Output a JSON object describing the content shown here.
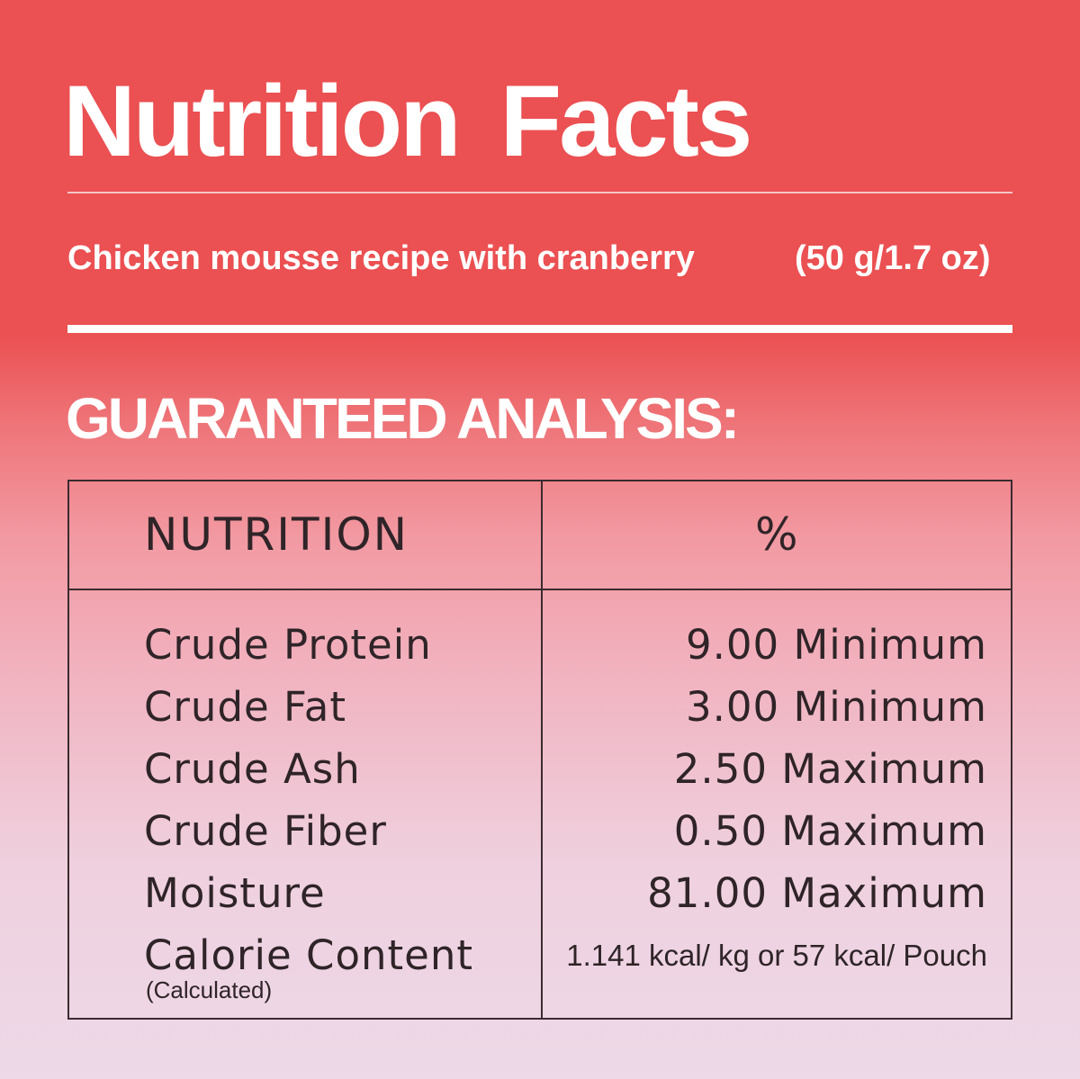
{
  "title": "Nutrition Facts",
  "subtitle": {
    "product": "Chicken mousse recipe with cranberry",
    "serving": "(50 g/1.7 oz)"
  },
  "section_heading": "GUARANTEED ANALYSIS:",
  "table": {
    "headers": [
      "NUTRITION",
      "%"
    ],
    "rows": [
      {
        "name": "Crude Protein",
        "value": "9.00 Minimum"
      },
      {
        "name": "Crude Fat",
        "value": "3.00 Minimum"
      },
      {
        "name": "Crude Ash",
        "value": "2.50 Maximum"
      },
      {
        "name": "Crude Fiber",
        "value": "0.50 Maximum"
      },
      {
        "name": "Moisture",
        "value": "81.00 Maximum"
      },
      {
        "name": "Calorie Content",
        "note": "(Calculated)",
        "value": "1.141 kcal/ kg or 57 kcal/ Pouch"
      }
    ]
  },
  "colors": {
    "header_red": "#EB5052",
    "bottom_pink": "#EDD9E8",
    "text_dark": "#2f2428"
  }
}
